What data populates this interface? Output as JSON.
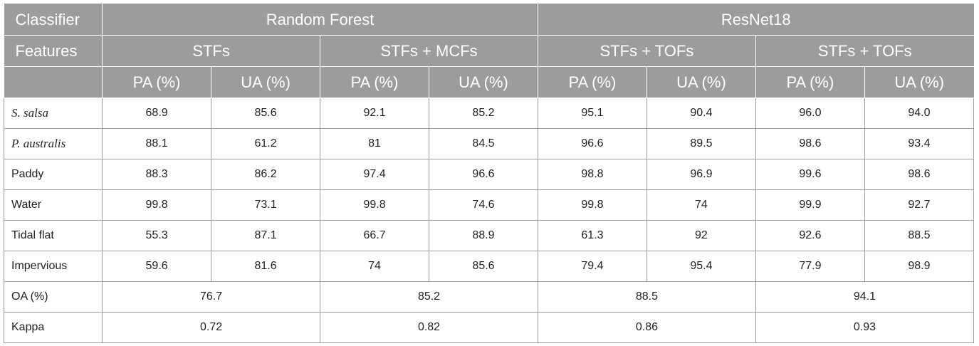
{
  "chart_data": {
    "type": "table",
    "header": {
      "classifier_label": "Classifier",
      "features_label": "Features",
      "classifiers": [
        {
          "name": "Random Forest",
          "span": 4
        },
        {
          "name": "ResNet18",
          "span": 4
        }
      ],
      "feature_sets": [
        "STFs",
        "STFs + MCFs",
        "STFs + TOFs",
        "STFs + TOFs"
      ],
      "metrics": [
        "PA (%)",
        "UA (%)",
        "PA (%)",
        "UA (%)",
        "PA (%)",
        "UA (%)",
        "PA (%)",
        "UA (%)"
      ]
    },
    "rows": [
      {
        "label": "S. salsa",
        "italic": true,
        "values": [
          "68.9",
          "85.6",
          "92.1",
          "85.2",
          "95.1",
          "90.4",
          "96.0",
          "94.0"
        ]
      },
      {
        "label": "P. australis",
        "italic": true,
        "values": [
          "88.1",
          "61.2",
          "81",
          "84.5",
          "96.6",
          "89.5",
          "98.6",
          "93.4"
        ]
      },
      {
        "label": "Paddy",
        "italic": false,
        "values": [
          "88.3",
          "86.2",
          "97.4",
          "96.6",
          "98.8",
          "96.9",
          "99.6",
          "98.6"
        ]
      },
      {
        "label": "Water",
        "italic": false,
        "values": [
          "99.8",
          "73.1",
          "99.8",
          "74.6",
          "99.8",
          "74",
          "99.9",
          "92.7"
        ]
      },
      {
        "label": "Tidal flat",
        "italic": false,
        "values": [
          "55.3",
          "87.1",
          "66.7",
          "88.9",
          "61.3",
          "92",
          "92.6",
          "88.5"
        ]
      },
      {
        "label": "Impervious",
        "italic": false,
        "values": [
          "59.6",
          "81.6",
          "74",
          "85.6",
          "79.4",
          "95.4",
          "77.9",
          "98.9"
        ]
      }
    ],
    "summary_rows": [
      {
        "label": "OA (%)",
        "values": [
          "76.7",
          "85.2",
          "88.5",
          "94.1"
        ]
      },
      {
        "label": "Kappa",
        "values": [
          "0.72",
          "0.82",
          "0.86",
          "0.93"
        ]
      }
    ]
  },
  "colors": {
    "header_bg": "#9b9c9c",
    "header_text": "#ffffff",
    "border": "#9b9c9c"
  }
}
